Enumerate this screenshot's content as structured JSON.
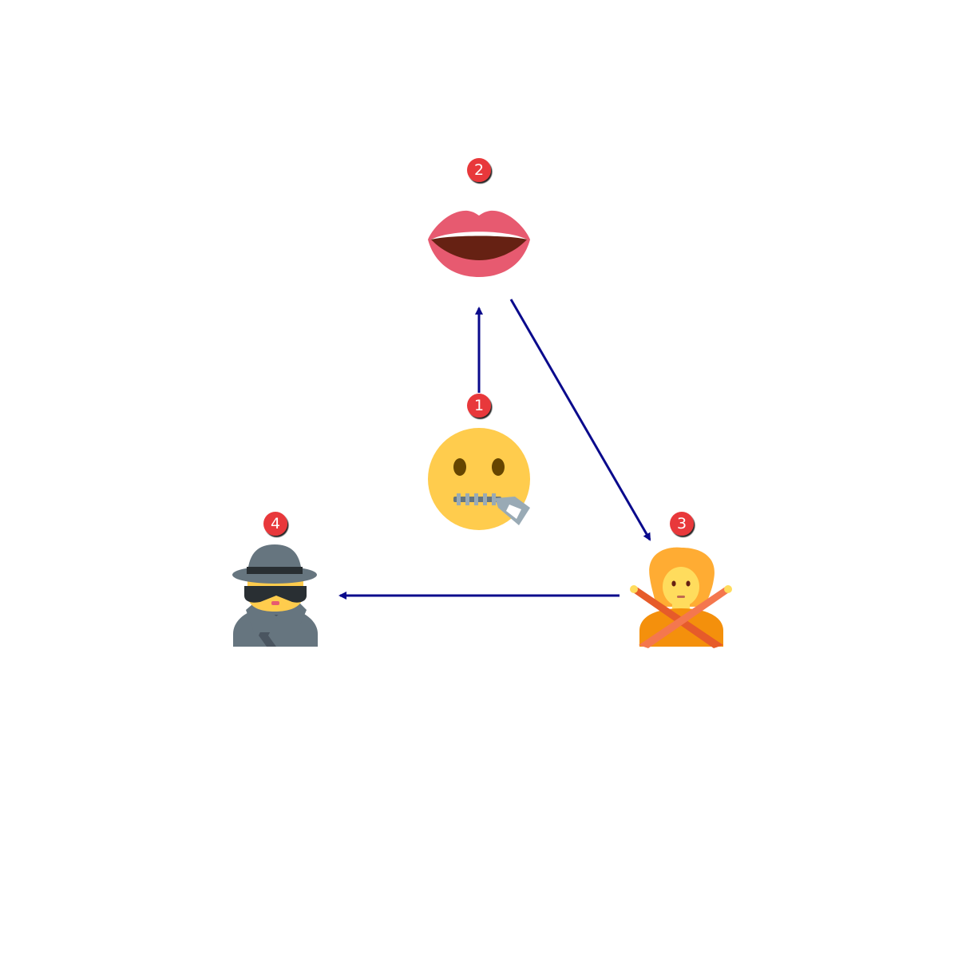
{
  "diagram": {
    "nodes": [
      {
        "id": "zipper-mouth-face",
        "icon": "zipper-mouth-face-icon",
        "badge": "1"
      },
      {
        "id": "mouth",
        "icon": "mouth-icon",
        "badge": "2"
      },
      {
        "id": "person-gesturing-no",
        "icon": "person-gesturing-no-icon",
        "badge": "3"
      },
      {
        "id": "detective",
        "icon": "detective-icon",
        "badge": "4"
      }
    ],
    "edges": [
      {
        "from": "zipper-mouth-face",
        "to": "mouth"
      },
      {
        "from": "mouth",
        "to": "person-gesturing-no"
      },
      {
        "from": "person-gesturing-no",
        "to": "detective"
      }
    ],
    "colors": {
      "arrow": "#0a0a8c",
      "badge": "#e8393a",
      "badge_text": "#ffffff"
    }
  }
}
